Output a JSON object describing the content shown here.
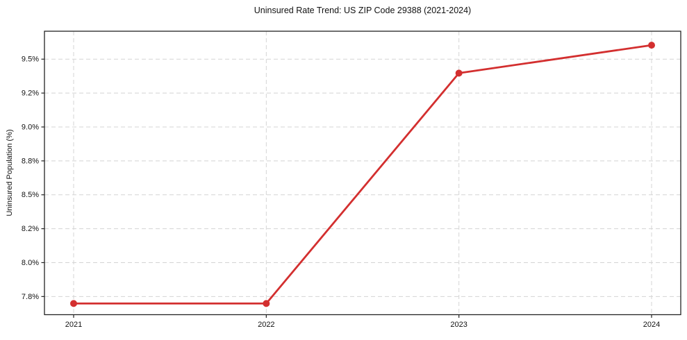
{
  "chart_data": {
    "type": "line",
    "title": "Uninsured Rate Trend: US ZIP Code 29388 (2021-2024)",
    "xlabel": "",
    "ylabel": "Uninsured Population (%)",
    "categories": [
      "2021",
      "2022",
      "2023",
      "2024"
    ],
    "values": [
      7.75,
      7.75,
      9.4,
      9.6
    ],
    "ytick_labels": [
      "7.8%",
      "8.0%",
      "8.2%",
      "8.5%",
      "8.8%",
      "9.0%",
      "9.2%",
      "9.5%"
    ],
    "ylim": [
      7.67,
      9.7
    ],
    "grid": true,
    "grid_style": "dashed",
    "legend_position": "none",
    "line_color": "#d32f2f",
    "marker": "circle"
  }
}
